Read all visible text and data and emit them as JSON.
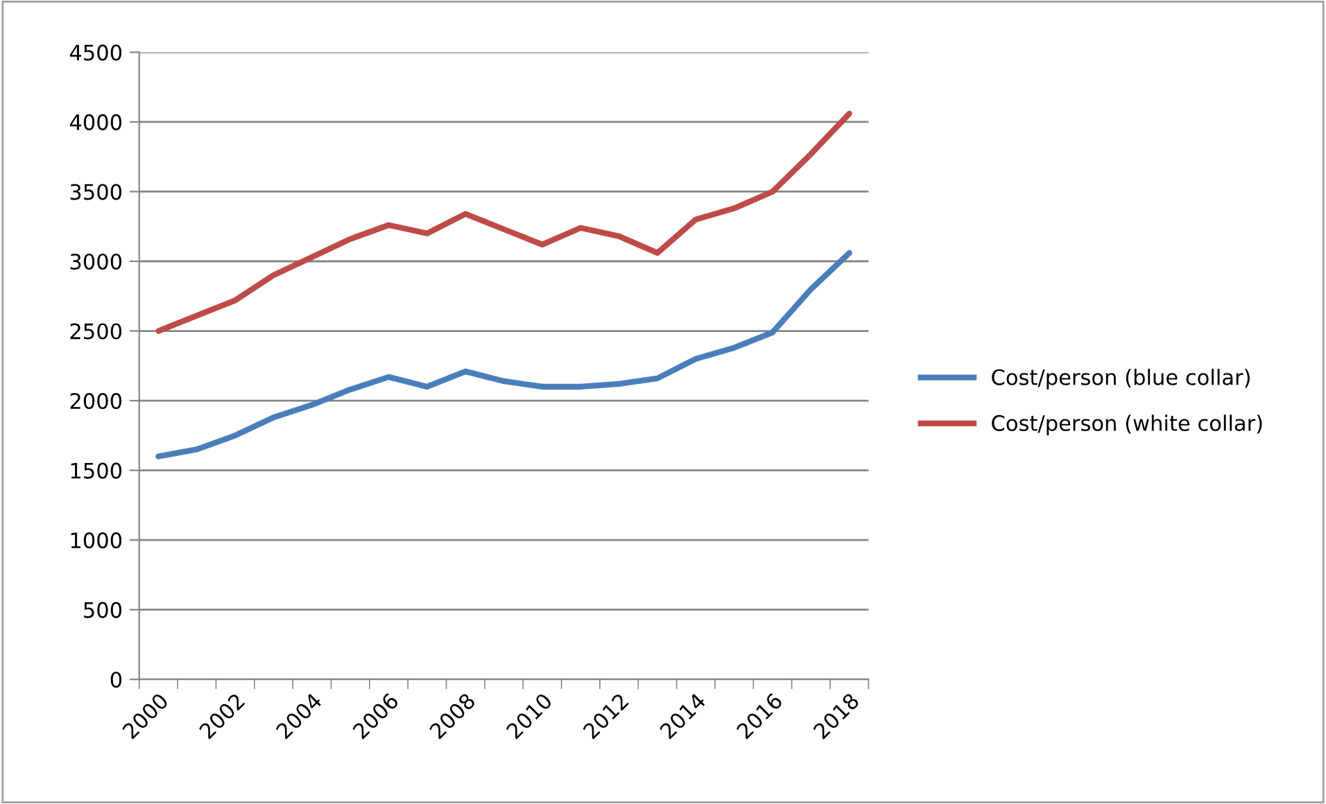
{
  "chart_data": {
    "type": "line",
    "categories": [
      "2000",
      null,
      "2002",
      null,
      "2004",
      null,
      "2006",
      null,
      "2008",
      null,
      "2010",
      null,
      "2012",
      null,
      "2014",
      null,
      "2016",
      null,
      "2018"
    ],
    "series": [
      {
        "name": "Cost/person (blue collar)",
        "color": "#4a7ebb",
        "values": [
          1600,
          1650,
          1750,
          1880,
          1970,
          2080,
          2170,
          2100,
          2210,
          2140,
          2100,
          2100,
          2120,
          2160,
          2300,
          2380,
          2490,
          2800,
          3060
        ]
      },
      {
        "name": "Cost/person (white collar)",
        "color": "#be4b48",
        "values": [
          2500,
          2610,
          2720,
          2900,
          3030,
          3160,
          3260,
          3200,
          3340,
          3230,
          3120,
          3240,
          3180,
          3060,
          3300,
          3380,
          3500,
          3770,
          4060
        ]
      }
    ],
    "ylim": [
      0,
      4500
    ],
    "yticks": [
      0,
      500,
      1000,
      1500,
      2000,
      2500,
      3000,
      3500,
      4000,
      4500
    ],
    "grid": "y",
    "legend": "right",
    "marker": "none",
    "line_style": "solid"
  }
}
